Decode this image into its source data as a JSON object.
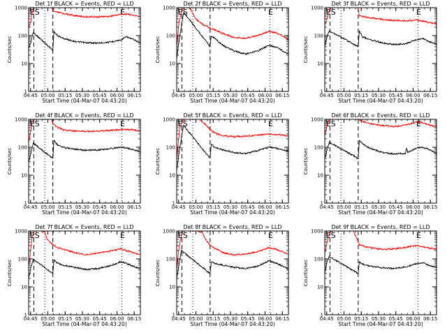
{
  "figure": {
    "grid_rows": 3,
    "grid_cols": 3,
    "time_ticks": [
      "04:45",
      "05:00",
      "05:15",
      "05:30",
      "05:45",
      "06:00",
      "06:15"
    ],
    "y_ticks": [
      "1",
      "10",
      "100",
      "1000"
    ],
    "y_label": "Counts/sec",
    "x_label": "Start Time (04-Mar-07 04:43:20)",
    "colors": {
      "events": "#000000",
      "lld": "#ff0000",
      "axes": "#000000"
    }
  },
  "chart_data": [
    {
      "type": "line",
      "title": "Det 1f BLACK = Events, RED = LLD",
      "xlabel": "Start Time (04-Mar-07 04:43:20)",
      "ylabel": "Counts/sec",
      "x_unit": "minutes after 04:43:20",
      "xlim": [
        0,
        97
      ],
      "ylim": [
        1,
        1000
      ],
      "yscale": "log",
      "marker_labels": [
        "E",
        "S",
        "E"
      ],
      "marker_lines": [
        {
          "x": 4.5,
          "style": "dashed"
        },
        {
          "x": 14,
          "style": "dotted"
        },
        {
          "x": 21,
          "style": "dashed"
        },
        {
          "x": 81,
          "style": "dotted"
        }
      ],
      "series": [
        {
          "color": "red",
          "x": [
            0,
            1,
            2,
            3,
            4,
            10,
            15,
            20,
            22,
            30,
            40,
            50,
            60,
            70,
            80,
            85,
            90,
            97
          ],
          "y": [
            200,
            250,
            320,
            600,
            1000,
            1000,
            1000,
            1000,
            720,
            620,
            520,
            470,
            470,
            490,
            580,
            600,
            540,
            470
          ]
        },
        {
          "color": "black",
          "x": [
            0,
            1,
            2,
            3,
            4,
            21,
            22,
            25,
            30,
            40,
            50,
            60,
            70,
            80,
            85,
            90,
            97
          ],
          "y": [
            35,
            45,
            60,
            90,
            130,
            30,
            140,
            100,
            80,
            62,
            55,
            54,
            58,
            70,
            90,
            75,
            55
          ]
        }
      ]
    },
    {
      "type": "line",
      "title": "Det 2f BLACK = Events, RED = LLD",
      "xlabel": "Start Time (04-Mar-07 04:43:20)",
      "ylabel": "Counts/sec",
      "x_unit": "minutes after 04:43:20",
      "xlim": [
        0,
        97
      ],
      "ylim": [
        1,
        1000
      ],
      "yscale": "log",
      "marker_labels": [
        "E",
        "S",
        "E"
      ],
      "marker_lines": [
        {
          "x": 4.5,
          "style": "dashed"
        },
        {
          "x": 14,
          "style": "dotted"
        },
        {
          "x": 29,
          "style": "dashed"
        },
        {
          "x": 81,
          "style": "dotted"
        }
      ],
      "series": [
        {
          "color": "red",
          "x": [
            0,
            1,
            2,
            4,
            6,
            8,
            10,
            12,
            14,
            16,
            20,
            25,
            30,
            40,
            50,
            60,
            70,
            80,
            85,
            90,
            97
          ],
          "y": [
            40,
            100,
            300,
            700,
            1000,
            1000,
            1000,
            900,
            600,
            420,
            300,
            220,
            180,
            120,
            85,
            80,
            100,
            140,
            130,
            110,
            70
          ]
        },
        {
          "color": "black",
          "x": [
            0,
            2,
            4,
            6,
            29,
            30,
            33,
            40,
            50,
            60,
            70,
            80,
            85,
            90,
            97
          ],
          "y": [
            15,
            60,
            200,
            700,
            40,
            100,
            80,
            45,
            28,
            22,
            28,
            45,
            40,
            32,
            22
          ]
        }
      ]
    },
    {
      "type": "line",
      "title": "Det 3f BLACK = Events, RED = LLD",
      "xlabel": "Start Time (04-Mar-07 04:43:20)",
      "ylabel": "Counts/sec",
      "x_unit": "minutes after 04:43:20",
      "xlim": [
        0,
        97
      ],
      "ylim": [
        1,
        1000
      ],
      "yscale": "log",
      "marker_labels": [
        "E",
        "S",
        "E"
      ],
      "marker_lines": [
        {
          "x": 4.5,
          "style": "dashed"
        },
        {
          "x": 14,
          "style": "dotted"
        },
        {
          "x": 29,
          "style": "dashed"
        },
        {
          "x": 81,
          "style": "dotted"
        }
      ],
      "series": [
        {
          "color": "red",
          "x": [
            0,
            1,
            2,
            4,
            6,
            29,
            30,
            40,
            50,
            60,
            70,
            80,
            85,
            90,
            97
          ],
          "y": [
            250,
            300,
            400,
            800,
            1000,
            1000,
            500,
            430,
            380,
            350,
            340,
            360,
            330,
            300,
            260
          ]
        },
        {
          "color": "black",
          "x": [
            0,
            1,
            2,
            4,
            29,
            30,
            33,
            40,
            50,
            60,
            70,
            80,
            85,
            90,
            97
          ],
          "y": [
            40,
            60,
            90,
            150,
            40,
            150,
            90,
            70,
            55,
            48,
            50,
            72,
            80,
            62,
            50
          ]
        }
      ]
    },
    {
      "type": "line",
      "title": "Det 4f BLACK = Events, RED = LLD",
      "xlabel": "Start Time (04-Mar-07 04:43:20)",
      "ylabel": "Counts/sec",
      "x_unit": "minutes after 04:43:20",
      "xlim": [
        0,
        97
      ],
      "ylim": [
        1,
        1000
      ],
      "yscale": "log",
      "marker_labels": [
        "E",
        "S",
        "E"
      ],
      "marker_lines": [
        {
          "x": 4.5,
          "style": "dashed"
        },
        {
          "x": 14,
          "style": "dotted"
        },
        {
          "x": 21,
          "style": "dashed"
        },
        {
          "x": 81,
          "style": "dotted"
        }
      ],
      "series": [
        {
          "color": "red",
          "x": [
            0,
            1,
            2,
            3,
            5,
            20,
            21,
            25,
            30,
            40,
            50,
            60,
            70,
            80,
            90,
            97
          ],
          "y": [
            150,
            250,
            400,
            800,
            1000,
            1000,
            700,
            520,
            420,
            380,
            370,
            380,
            400,
            430,
            430,
            380
          ]
        },
        {
          "color": "black",
          "x": [
            0,
            1,
            2,
            4,
            21,
            22,
            25,
            30,
            40,
            50,
            60,
            70,
            80,
            85,
            90,
            97
          ],
          "y": [
            30,
            40,
            60,
            140,
            40,
            180,
            120,
            100,
            85,
            78,
            80,
            88,
            100,
            95,
            82,
            68
          ]
        }
      ]
    },
    {
      "type": "line",
      "title": "Det 5f BLACK = Events, RED = LLD",
      "xlabel": "Start Time (04-Mar-07 04:43:20)",
      "ylabel": "Counts/sec",
      "x_unit": "minutes after 04:43:20",
      "xlim": [
        0,
        97
      ],
      "ylim": [
        1,
        1000
      ],
      "yscale": "log",
      "marker_labels": [
        "E",
        "S",
        "E"
      ],
      "marker_lines": [
        {
          "x": 4.5,
          "style": "dashed"
        },
        {
          "x": 14,
          "style": "dotted"
        },
        {
          "x": 29,
          "style": "dashed"
        },
        {
          "x": 81,
          "style": "dotted"
        }
      ],
      "series": [
        {
          "color": "red",
          "x": [
            0,
            1,
            2,
            3,
            4,
            6,
            8,
            10,
            12,
            15,
            20,
            25,
            30,
            35,
            40,
            50,
            60,
            70,
            80,
            90,
            97
          ],
          "y": [
            40,
            100,
            250,
            550,
            700,
            1000,
            1000,
            1000,
            1000,
            1000,
            1000,
            650,
            400,
            300,
            260,
            240,
            250,
            270,
            290,
            280,
            250
          ]
        },
        {
          "color": "black",
          "x": [
            0,
            2,
            4,
            6,
            29,
            30,
            33,
            40,
            50,
            60,
            70,
            80,
            85,
            90,
            97
          ],
          "y": [
            15,
            60,
            200,
            600,
            40,
            130,
            100,
            80,
            65,
            60,
            75,
            100,
            95,
            85,
            72
          ]
        }
      ]
    },
    {
      "type": "line",
      "title": "Det 6f BLACK = Events, RED = LLD",
      "xlabel": "Start Time (04-Mar-07 04:43:20)",
      "ylabel": "Counts/sec",
      "x_unit": "minutes after 04:43:20",
      "xlim": [
        0,
        97
      ],
      "ylim": [
        1,
        1000
      ],
      "yscale": "log",
      "marker_labels": [
        "E",
        "S",
        "E"
      ],
      "marker_lines": [
        {
          "x": 4.5,
          "style": "dashed"
        },
        {
          "x": 14,
          "style": "dotted"
        },
        {
          "x": 29,
          "style": "dashed"
        },
        {
          "x": 81,
          "style": "dotted"
        }
      ],
      "series": [
        {
          "color": "red",
          "x": [
            0,
            1,
            2,
            4,
            6,
            29,
            30,
            35,
            40,
            50,
            60,
            70,
            80,
            85,
            90,
            97
          ],
          "y": [
            250,
            400,
            600,
            1000,
            1000,
            1000,
            950,
            800,
            700,
            600,
            550,
            620,
            800,
            750,
            650,
            520
          ]
        },
        {
          "color": "black",
          "x": [
            0,
            2,
            4,
            29,
            30,
            33,
            40,
            50,
            60,
            70,
            71,
            72,
            80,
            85,
            90,
            97
          ],
          "y": [
            40,
            80,
            150,
            40,
            180,
            130,
            90,
            65,
            58,
            60,
            95,
            65,
            95,
            100,
            85,
            60
          ]
        }
      ]
    },
    {
      "type": "line",
      "title": "Det 7f BLACK = Events, RED = LLD",
      "xlabel": "Start Time (04-Mar-07 04:43:20)",
      "ylabel": "Counts/sec",
      "x_unit": "minutes after 04:43:20",
      "xlim": [
        0,
        97
      ],
      "ylim": [
        1,
        1000
      ],
      "yscale": "log",
      "marker_labels": [
        "E",
        "S",
        "E"
      ],
      "marker_lines": [
        {
          "x": 4.5,
          "style": "dashed"
        },
        {
          "x": 14,
          "style": "dotted"
        },
        {
          "x": 21,
          "style": "dashed"
        },
        {
          "x": 81,
          "style": "dotted"
        }
      ],
      "series": [
        {
          "color": "red",
          "x": [
            0,
            1,
            2,
            3,
            5,
            12,
            14,
            16,
            20,
            22,
            25,
            30,
            40,
            50,
            60,
            70,
            80,
            85,
            90,
            97
          ],
          "y": [
            60,
            100,
            250,
            600,
            1000,
            1000,
            900,
            500,
            350,
            300,
            260,
            220,
            170,
            140,
            160,
            190,
            230,
            200,
            170,
            140
          ]
        },
        {
          "color": "black",
          "x": [
            0,
            1,
            2,
            4,
            21,
            22,
            25,
            30,
            40,
            50,
            60,
            70,
            80,
            85,
            90,
            97
          ],
          "y": [
            20,
            30,
            50,
            100,
            30,
            90,
            70,
            60,
            50,
            42,
            45,
            55,
            80,
            70,
            55,
            45
          ]
        }
      ]
    },
    {
      "type": "line",
      "title": "Det 8f BLACK = Events, RED = LLD",
      "xlabel": "Start Time (04-Mar-07 04:43:20)",
      "ylabel": "Counts/sec",
      "x_unit": "minutes after 04:43:20",
      "xlim": [
        0,
        97
      ],
      "ylim": [
        1,
        1000
      ],
      "yscale": "log",
      "marker_labels": [
        "E",
        "S",
        "E"
      ],
      "marker_lines": [
        {
          "x": 4.5,
          "style": "dashed"
        },
        {
          "x": 14,
          "style": "dotted"
        },
        {
          "x": 29,
          "style": "dashed"
        },
        {
          "x": 81,
          "style": "dotted"
        }
      ],
      "series": [
        {
          "color": "red",
          "x": [
            0,
            1,
            2,
            4,
            6,
            10,
            14,
            18,
            22,
            25,
            29,
            30,
            35,
            40,
            50,
            60,
            70,
            80,
            85,
            90,
            97
          ],
          "y": [
            40,
            100,
            250,
            700,
            1000,
            1000,
            1000,
            1000,
            900,
            500,
            300,
            280,
            220,
            170,
            140,
            150,
            180,
            250,
            230,
            190,
            150
          ]
        },
        {
          "color": "black",
          "x": [
            0,
            2,
            4,
            29,
            30,
            33,
            40,
            50,
            60,
            70,
            80,
            85,
            90,
            97
          ],
          "y": [
            20,
            60,
            200,
            30,
            80,
            70,
            60,
            50,
            45,
            55,
            85,
            75,
            60,
            45
          ]
        }
      ]
    },
    {
      "type": "line",
      "title": "Det 9f BLACK = Events, RED = LLD",
      "xlabel": "Start Time (04-Mar-07 04:43:20)",
      "ylabel": "Counts/sec",
      "x_unit": "minutes after 04:43:20",
      "xlim": [
        0,
        97
      ],
      "ylim": [
        1,
        1000
      ],
      "yscale": "log",
      "marker_labels": [
        "E",
        "S",
        "E"
      ],
      "marker_lines": [
        {
          "x": 4.5,
          "style": "dashed"
        },
        {
          "x": 14,
          "style": "dotted"
        },
        {
          "x": 29,
          "style": "dashed"
        },
        {
          "x": 81,
          "style": "dotted"
        }
      ],
      "series": [
        {
          "color": "red",
          "x": [
            0,
            1,
            2,
            4,
            6,
            20,
            25,
            29,
            30,
            35,
            40,
            50,
            60,
            70,
            80,
            85,
            90,
            97
          ],
          "y": [
            150,
            250,
            400,
            800,
            1000,
            1000,
            1000,
            400,
            320,
            280,
            250,
            220,
            230,
            260,
            300,
            280,
            250,
            220
          ]
        },
        {
          "color": "black",
          "x": [
            0,
            1,
            2,
            4,
            29,
            30,
            33,
            40,
            50,
            60,
            70,
            80,
            85,
            90,
            97
          ],
          "y": [
            30,
            50,
            80,
            120,
            30,
            80,
            65,
            55,
            48,
            45,
            52,
            68,
            75,
            60,
            50
          ]
        }
      ]
    }
  ]
}
